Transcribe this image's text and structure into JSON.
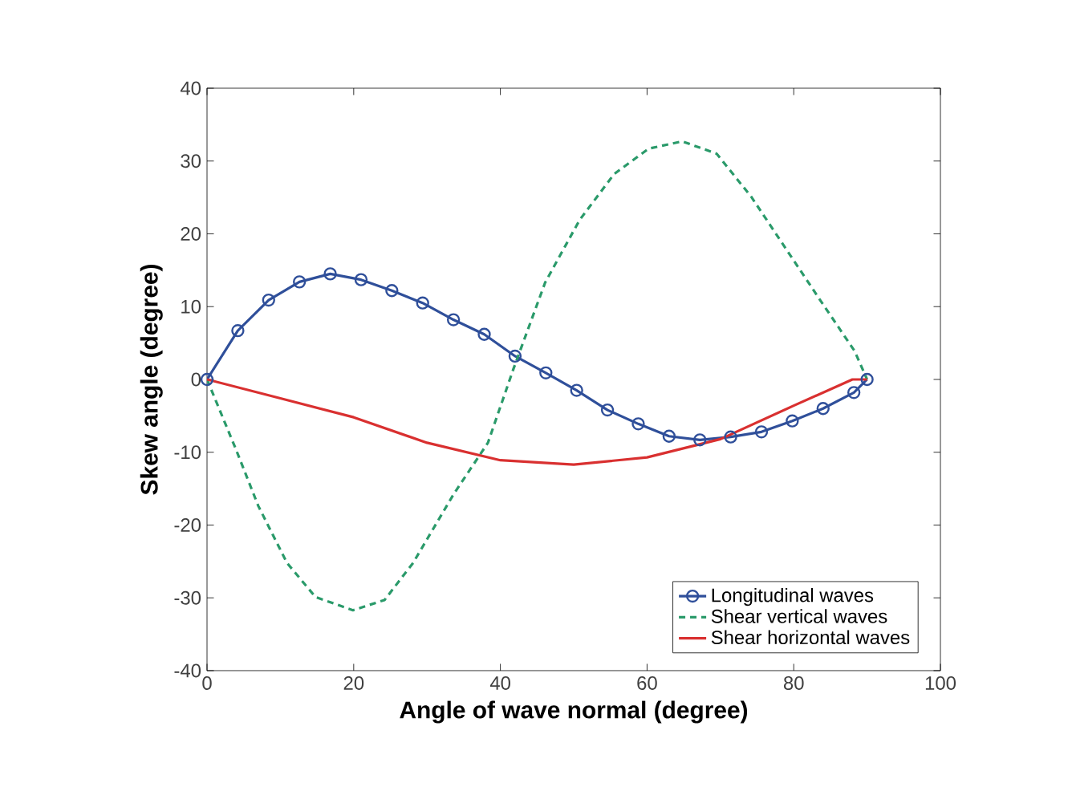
{
  "chart_data": {
    "type": "line",
    "xlabel": "Angle of wave normal (degree)",
    "ylabel": "Skew angle (degree)",
    "xlim": [
      0,
      100
    ],
    "ylim": [
      -40,
      40
    ],
    "xticks": [
      0,
      20,
      40,
      60,
      80,
      100
    ],
    "yticks": [
      -40,
      -30,
      -20,
      -10,
      0,
      10,
      20,
      30,
      40
    ],
    "legend": "bottom right",
    "grid": false,
    "series": [
      {
        "name": "Longitudinal waves",
        "color": "#2f4f9a",
        "marker": "circle",
        "line_style": "solid",
        "x": [
          0,
          4.2,
          8.4,
          12.6,
          16.8,
          21,
          25.2,
          29.4,
          33.6,
          37.8,
          42,
          46.2,
          50.4,
          54.6,
          58.8,
          63,
          67.2,
          71.4,
          75.6,
          79.8,
          84,
          88.2,
          90
        ],
        "values": [
          0,
          6.7,
          10.9,
          13.4,
          14.5,
          13.7,
          12.2,
          10.5,
          8.2,
          6.2,
          3.2,
          0.9,
          -1.5,
          -4.2,
          -6.1,
          -7.8,
          -8.3,
          -7.9,
          -7.2,
          -5.7,
          -4.0,
          -1.8,
          0
        ]
      },
      {
        "name": "Shear vertical waves",
        "color": "#2a9a6a",
        "marker": "none",
        "line_style": "dashed",
        "x": [
          0,
          3.9,
          7,
          10.9,
          14.8,
          19.9,
          24.2,
          28.1,
          33.6,
          38.3,
          41.8,
          46.1,
          50.8,
          55.5,
          60.2,
          64.8,
          69.5,
          74.2,
          78.9,
          83.6,
          88.3,
          90
        ],
        "values": [
          0,
          -9.5,
          -17.4,
          -25.2,
          -29.9,
          -31.7,
          -30.3,
          -25.2,
          -15.8,
          -8.7,
          1.5,
          13.3,
          21.9,
          28.2,
          31.7,
          32.7,
          31,
          25.1,
          18,
          10.9,
          3.9,
          0
        ]
      },
      {
        "name": "Shear horizontal waves",
        "color": "#d93030",
        "marker": "none",
        "line_style": "solid",
        "x": [
          0,
          10,
          20,
          30,
          40,
          50,
          60,
          70,
          80,
          88,
          90
        ],
        "values": [
          0,
          -2.6,
          -5.2,
          -8.7,
          -11.1,
          -11.7,
          -10.7,
          -8.2,
          -3.6,
          0,
          0
        ]
      }
    ]
  }
}
